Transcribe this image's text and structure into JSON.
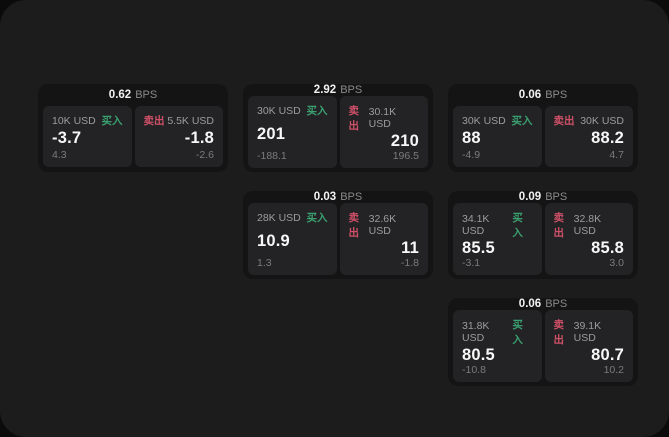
{
  "labels": {
    "bps_unit": "BPS",
    "buy": "买入",
    "sell": "卖出"
  },
  "colors": {
    "buy": "#3aa070",
    "sell": "#cf5068",
    "surface": "#1c1c1d",
    "card_bg": "#141415",
    "panel_bg": "#232325"
  },
  "cards": [
    {
      "bps": "0.62",
      "buy": {
        "amount": "10K USD",
        "price": "-3.7",
        "delta": "4.3"
      },
      "sell": {
        "amount": "5.5K USD",
        "price": "-1.8",
        "delta": "-2.6"
      }
    },
    {
      "bps": "2.92",
      "buy": {
        "amount": "30K USD",
        "price": "201",
        "delta": "-188.1"
      },
      "sell": {
        "amount": "30.1K USD",
        "price": "210",
        "delta": "196.5"
      }
    },
    {
      "bps": "0.06",
      "buy": {
        "amount": "30K USD",
        "price": "88",
        "delta": "-4.9"
      },
      "sell": {
        "amount": "30K USD",
        "price": "88.2",
        "delta": "4.7"
      }
    },
    {
      "bps": "0.03",
      "buy": {
        "amount": "28K USD",
        "price": "10.9",
        "delta": "1.3"
      },
      "sell": {
        "amount": "32.6K USD",
        "price": "11",
        "delta": "-1.8"
      }
    },
    {
      "bps": "0.09",
      "buy": {
        "amount": "34.1K USD",
        "price": "85.5",
        "delta": "-3.1"
      },
      "sell": {
        "amount": "32.8K USD",
        "price": "85.8",
        "delta": "3.0"
      }
    },
    {
      "bps": "0.06",
      "buy": {
        "amount": "31.8K USD",
        "price": "80.5",
        "delta": "-10.8"
      },
      "sell": {
        "amount": "39.1K USD",
        "price": "80.7",
        "delta": "10.2"
      }
    }
  ]
}
